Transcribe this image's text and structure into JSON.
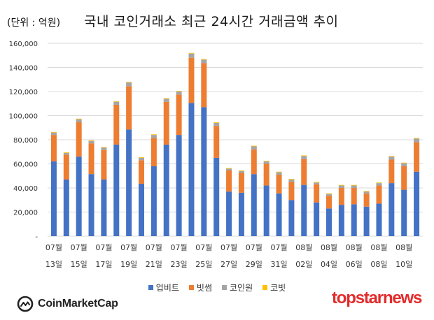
{
  "header": {
    "unit": "(단위 : 억원)",
    "title": "국내 코인거래소 최근 24시간 거래금액 추이"
  },
  "chart_data": {
    "type": "bar",
    "stacked": true,
    "title": "국내 코인거래소 최근 24시간 거래금액 추이",
    "ylabel": "(단위 : 억원)",
    "ylim": [
      0,
      160000
    ],
    "yticks": [
      "-",
      "20,000",
      "40,000",
      "60,000",
      "80,000",
      "100,000",
      "120,000",
      "140,000",
      "160,000"
    ],
    "grid": true,
    "legend_position": "bottom",
    "categories": [
      "07-13",
      "07-14",
      "07-15",
      "07-16",
      "07-17",
      "07-18",
      "07-19",
      "07-20",
      "07-21",
      "07-22",
      "07-23",
      "07-24",
      "07-25",
      "07-26",
      "07-27",
      "07-28",
      "07-29",
      "07-30",
      "07-31",
      "08-01",
      "08-02",
      "08-03",
      "08-04",
      "08-05",
      "08-06",
      "08-07",
      "08-08",
      "08-09",
      "08-10",
      "08-11"
    ],
    "x_tick_labels": [
      {
        "month": "07월",
        "day": "13일"
      },
      {
        "month": "07월",
        "day": "15일"
      },
      {
        "month": "07월",
        "day": "17일"
      },
      {
        "month": "07월",
        "day": "19일"
      },
      {
        "month": "07월",
        "day": "21일"
      },
      {
        "month": "07월",
        "day": "23일"
      },
      {
        "month": "07월",
        "day": "25일"
      },
      {
        "month": "07월",
        "day": "27일"
      },
      {
        "month": "07월",
        "day": "29일"
      },
      {
        "month": "07월",
        "day": "31일"
      },
      {
        "month": "08월",
        "day": "02일"
      },
      {
        "month": "08월",
        "day": "04일"
      },
      {
        "month": "08월",
        "day": "06일"
      },
      {
        "month": "08월",
        "day": "08일"
      },
      {
        "month": "08월",
        "day": "10일"
      }
    ],
    "series": [
      {
        "name": "업비트",
        "color": "#4472c4",
        "values": [
          62000,
          47000,
          66000,
          51500,
          47000,
          76000,
          88500,
          43500,
          58000,
          76000,
          84000,
          110500,
          107000,
          65000,
          37000,
          36000,
          51500,
          42000,
          35500,
          30000,
          42500,
          28000,
          23000,
          26000,
          26500,
          24500,
          27000,
          44000,
          38500,
          53500
        ]
      },
      {
        "name": "빗썸",
        "color": "#ed7d31",
        "values": [
          22000,
          20500,
          28500,
          25500,
          24500,
          33000,
          36000,
          19500,
          23500,
          35500,
          33500,
          37500,
          36500,
          26500,
          17500,
          16500,
          20500,
          18000,
          15500,
          15000,
          21500,
          15000,
          10500,
          14000,
          13500,
          11000,
          15000,
          19500,
          19500,
          24500
        ]
      },
      {
        "name": "코인원",
        "color": "#a5a5a5",
        "values": [
          2000,
          1500,
          2500,
          2000,
          2000,
          2500,
          3000,
          2000,
          2500,
          2500,
          2500,
          3500,
          3000,
          2500,
          1500,
          1500,
          2500,
          2000,
          2000,
          2000,
          2500,
          1500,
          1500,
          2000,
          2000,
          1500,
          2000,
          2500,
          2500,
          3000
        ]
      },
      {
        "name": "코빗",
        "color": "#ffc000",
        "values": [
          500,
          500,
          500,
          500,
          500,
          500,
          500,
          500,
          500,
          500,
          500,
          500,
          500,
          500,
          500,
          500,
          500,
          500,
          500,
          500,
          500,
          500,
          500,
          500,
          500,
          500,
          500,
          500,
          500,
          500
        ]
      }
    ]
  },
  "logos": {
    "coinmarketcap": "CoinMarketCap",
    "topstarnews": "topstarnews"
  }
}
